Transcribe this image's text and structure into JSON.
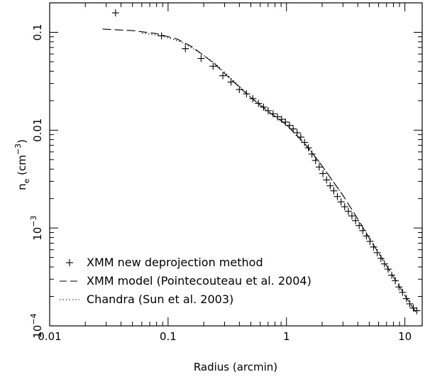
{
  "chart_data": {
    "type": "line",
    "title": "",
    "xlabel": "Radius (arcmin)",
    "ylabel": "n_e (cm^-3)",
    "ylabel_parts": {
      "main": "n",
      "sub": "e",
      "unit_open": " (cm",
      "unit_sup": "−3",
      "unit_close": ")"
    },
    "xscale": "log",
    "yscale": "log",
    "xlim": [
      0.01,
      14
    ],
    "ylim": [
      0.0001,
      0.2
    ],
    "grid": false,
    "legend_position": "bottom-left",
    "x_ticks": [
      {
        "value": 0.01,
        "label": "0.01"
      },
      {
        "value": 0.1,
        "label": "0.1"
      },
      {
        "value": 1,
        "label": "1"
      },
      {
        "value": 10,
        "label": "10"
      }
    ],
    "y_ticks": [
      {
        "value": 0.1,
        "base": "0.1",
        "exp": ""
      },
      {
        "value": 0.01,
        "base": "0.01",
        "exp": ""
      },
      {
        "value": 0.001,
        "base": "10",
        "exp": "−3"
      },
      {
        "value": 0.0001,
        "base": "10",
        "exp": "−4"
      }
    ],
    "series": [
      {
        "name": "XMM new deprojection method",
        "style": "plus",
        "x": [
          0.036,
          0.088,
          0.14,
          0.19,
          0.24,
          0.29,
          0.34,
          0.4,
          0.46,
          0.52,
          0.58,
          0.64,
          0.7,
          0.77,
          0.84,
          0.91,
          0.98,
          1.06,
          1.14,
          1.23,
          1.32,
          1.42,
          1.53,
          1.64,
          1.76,
          1.89,
          2.03,
          2.18,
          2.34,
          2.51,
          2.69,
          2.89,
          3.1,
          3.33,
          3.57,
          3.83,
          4.11,
          4.41,
          4.73,
          5.07,
          5.44,
          5.84,
          6.27,
          6.72,
          7.21,
          7.74,
          8.3,
          8.91,
          9.56,
          10.3,
          11.0,
          11.8,
          12.6
        ],
        "y": [
          0.158,
          0.092,
          0.068,
          0.054,
          0.045,
          0.036,
          0.031,
          0.026,
          0.0235,
          0.021,
          0.0188,
          0.0172,
          0.0158,
          0.0147,
          0.0137,
          0.0129,
          0.0121,
          0.0112,
          0.0103,
          0.0094,
          0.0085,
          0.0075,
          0.0066,
          0.0057,
          0.0049,
          0.0042,
          0.0036,
          0.0031,
          0.0027,
          0.0024,
          0.0021,
          0.00185,
          0.00165,
          0.00148,
          0.00133,
          0.00119,
          0.00106,
          0.00094,
          0.00083,
          0.00073,
          0.00064,
          0.00056,
          0.00049,
          0.00043,
          0.00038,
          0.00033,
          0.00029,
          0.00025,
          0.00022,
          0.00019,
          0.000168,
          0.000152,
          0.000143
        ]
      },
      {
        "name": "XMM model (Pointecouteau et al. 2004)",
        "style": "dashed",
        "x": [
          0.028,
          0.05,
          0.08,
          0.12,
          0.16,
          0.2,
          0.25,
          0.3,
          0.4,
          0.5,
          0.7,
          1.0,
          1.5,
          2.0,
          3.0,
          4.0,
          5.0,
          7.0,
          10.0,
          12.5
        ],
        "y": [
          0.108,
          0.104,
          0.097,
          0.085,
          0.071,
          0.058,
          0.047,
          0.038,
          0.0275,
          0.0215,
          0.0155,
          0.0114,
          0.0068,
          0.0043,
          0.00215,
          0.00124,
          0.00079,
          0.00041,
          0.000205,
          0.000135
        ]
      },
      {
        "name": "Chandra (Sun et al. 2003)",
        "style": "dotted",
        "x": [
          0.06,
          0.08,
          0.1,
          0.13,
          0.16,
          0.2,
          0.25,
          0.3,
          0.4,
          0.5,
          0.7,
          1.0,
          1.5,
          2.0,
          3.0
        ],
        "y": [
          0.098,
          0.094,
          0.088,
          0.079,
          0.069,
          0.058,
          0.048,
          0.039,
          0.0282,
          0.0218,
          0.0156,
          0.0113,
          0.0067,
          0.0043,
          0.00215
        ]
      }
    ]
  }
}
